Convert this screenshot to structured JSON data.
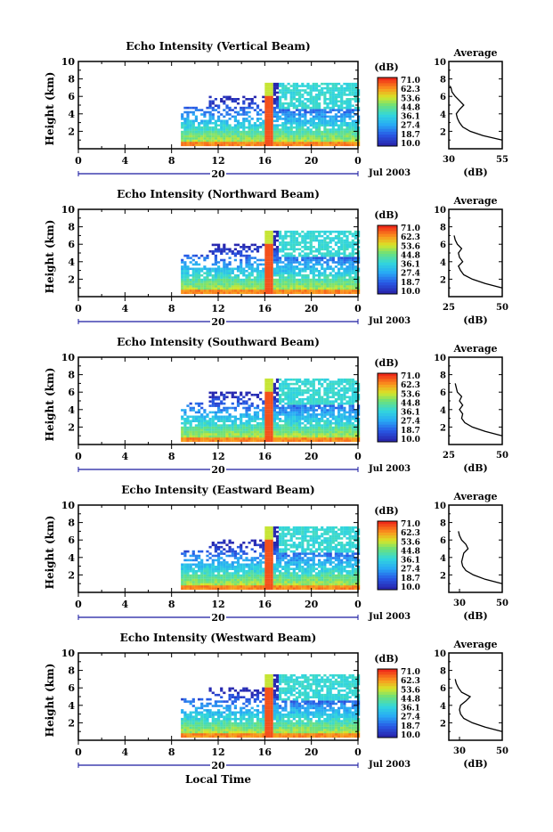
{
  "figure": {
    "xlabel": "Local Time",
    "date_label": "Jul 2003",
    "day_label": "20",
    "colorbar_unit": "(dB)",
    "colorbar_ticks": [
      "71.0",
      "62.3",
      "53.6",
      "44.8",
      "36.1",
      "27.4",
      "18.7",
      "10.0"
    ],
    "colors": {
      "low": "#2b2bb8",
      "mid": "#2fd3d8",
      "high": "#f23a1a",
      "axis": "#000000",
      "timeline": "#1a1aa0"
    }
  },
  "chart_data": [
    {
      "type": "heatmap",
      "title": "Echo Intensity (Vertical Beam)",
      "ylabel": "Height (km)",
      "xlim": [
        0,
        24
      ],
      "ylim": [
        0,
        10
      ],
      "x_ticks": [
        "0",
        "4",
        "8",
        "12",
        "16",
        "20",
        "0"
      ],
      "y_ticks": [
        "2",
        "4",
        "6",
        "8",
        "10"
      ],
      "zlim": [
        10.0,
        71.0
      ],
      "profile": {
        "title": "Average",
        "xlabel": "(dB)",
        "xlim": [
          30,
          55
        ],
        "x_ticks": [
          "30",
          "55"
        ],
        "y_ticks": [
          "2",
          "4",
          "6",
          "8",
          "10"
        ],
        "height": [
          1.0,
          1.5,
          2.0,
          2.5,
          3.0,
          3.5,
          4.0,
          4.5,
          5.0,
          5.5,
          6.0,
          6.5,
          7.0,
          7.2
        ],
        "value": [
          55.0,
          46.0,
          40.0,
          36.5,
          35.0,
          34.0,
          33.5,
          35.0,
          37.0,
          35.0,
          33.0,
          31.5,
          31.0,
          30.5
        ]
      }
    },
    {
      "type": "heatmap",
      "title": "Echo Intensity (Northward Beam)",
      "ylabel": "Height (km)",
      "xlim": [
        0,
        24
      ],
      "ylim": [
        0,
        10
      ],
      "x_ticks": [
        "0",
        "4",
        "8",
        "12",
        "16",
        "20",
        "0"
      ],
      "y_ticks": [
        "2",
        "4",
        "6",
        "8",
        "10"
      ],
      "zlim": [
        10.0,
        71.0
      ],
      "profile": {
        "title": "Average",
        "xlabel": "(dB)",
        "xlim": [
          25,
          50
        ],
        "x_ticks": [
          "25",
          "50"
        ],
        "y_ticks": [
          "2",
          "4",
          "6",
          "8",
          "10"
        ],
        "height": [
          1.0,
          1.5,
          2.0,
          2.5,
          3.0,
          3.5,
          4.0,
          4.5,
          5.0,
          5.5,
          6.0,
          6.5,
          7.0
        ],
        "value": [
          50.0,
          42.0,
          36.0,
          32.0,
          30.5,
          29.5,
          31.5,
          30.0,
          29.5,
          31.0,
          29.0,
          28.0,
          27.5
        ]
      }
    },
    {
      "type": "heatmap",
      "title": "Echo Intensity (Southward Beam)",
      "ylabel": "Height (km)",
      "xlim": [
        0,
        24
      ],
      "ylim": [
        0,
        10
      ],
      "x_ticks": [
        "0",
        "4",
        "8",
        "12",
        "16",
        "20",
        "0"
      ],
      "y_ticks": [
        "2",
        "4",
        "6",
        "8",
        "10"
      ],
      "zlim": [
        10.0,
        71.0
      ],
      "profile": {
        "title": "Average",
        "xlabel": "(dB)",
        "xlim": [
          25,
          50
        ],
        "x_ticks": [
          "25",
          "50"
        ],
        "y_ticks": [
          "2",
          "4",
          "6",
          "8",
          "10"
        ],
        "height": [
          1.0,
          1.5,
          2.0,
          2.5,
          3.0,
          3.5,
          4.0,
          4.5,
          5.0,
          5.5,
          6.0,
          6.5,
          7.0
        ],
        "value": [
          50.0,
          42.0,
          36.0,
          32.5,
          31.0,
          31.5,
          30.0,
          31.5,
          30.0,
          31.0,
          29.0,
          28.5,
          28.0
        ]
      }
    },
    {
      "type": "heatmap",
      "title": "Echo Intensity (Eastward Beam)",
      "ylabel": "Height (km)",
      "xlim": [
        0,
        24
      ],
      "ylim": [
        0,
        10
      ],
      "x_ticks": [
        "0",
        "4",
        "8",
        "12",
        "16",
        "20",
        "0"
      ],
      "y_ticks": [
        "2",
        "4",
        "6",
        "8",
        "10"
      ],
      "zlim": [
        10.0,
        71.0
      ],
      "profile": {
        "title": "Average",
        "xlabel": "(dB)",
        "xlim": [
          25,
          50
        ],
        "x_ticks": [
          "30",
          "50"
        ],
        "y_ticks": [
          "2",
          "4",
          "6",
          "8",
          "10"
        ],
        "height": [
          1.0,
          1.5,
          2.0,
          2.5,
          3.0,
          3.5,
          4.0,
          4.5,
          5.0,
          5.5,
          6.0,
          6.5,
          7.0
        ],
        "value": [
          50.0,
          42.0,
          36.5,
          33.0,
          31.5,
          31.0,
          31.5,
          32.0,
          34.0,
          33.0,
          31.0,
          30.0,
          29.5
        ]
      }
    },
    {
      "type": "heatmap",
      "title": "Echo Intensity (Westward Beam)",
      "ylabel": "Height (km)",
      "xlim": [
        0,
        24
      ],
      "ylim": [
        0,
        10
      ],
      "x_ticks": [
        "0",
        "4",
        "8",
        "12",
        "16",
        "20",
        "0"
      ],
      "y_ticks": [
        "2",
        "4",
        "6",
        "8",
        "10"
      ],
      "zlim": [
        10.0,
        71.0
      ],
      "profile": {
        "title": "Average",
        "xlabel": "(dB)",
        "xlim": [
          25,
          50
        ],
        "x_ticks": [
          "30",
          "50"
        ],
        "y_ticks": [
          "2",
          "4",
          "6",
          "8",
          "10"
        ],
        "height": [
          1.0,
          1.5,
          2.0,
          2.5,
          3.0,
          3.5,
          4.0,
          4.5,
          5.0,
          5.5,
          6.0,
          6.5,
          7.0
        ],
        "value": [
          50.0,
          42.0,
          36.0,
          32.0,
          30.5,
          30.0,
          30.5,
          33.0,
          35.0,
          31.0,
          29.5,
          28.5,
          28.0
        ]
      }
    }
  ]
}
